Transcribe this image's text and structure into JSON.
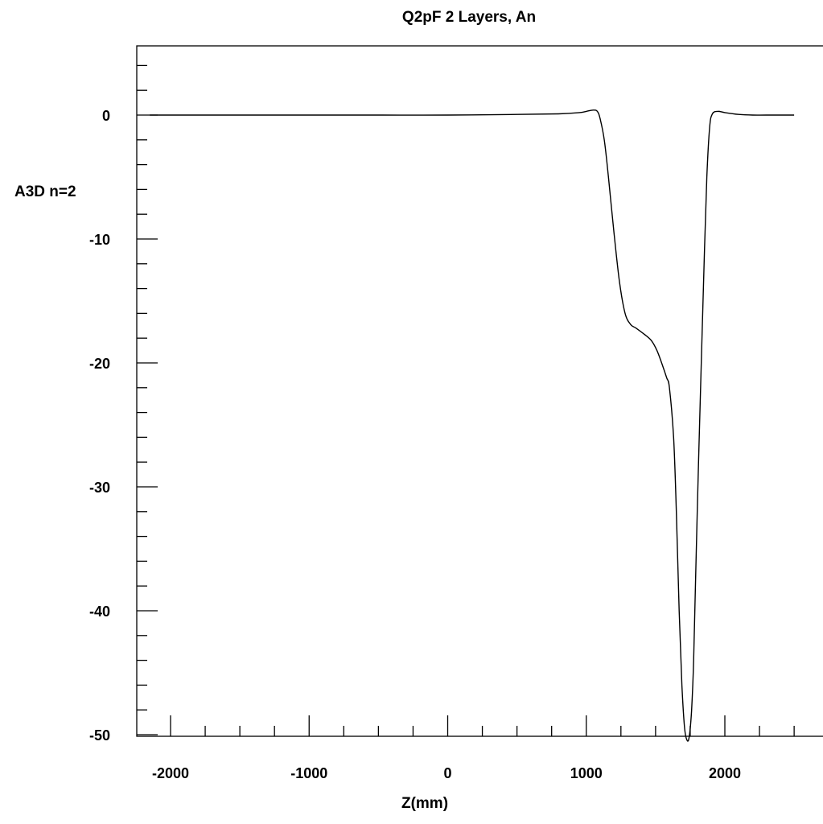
{
  "chart_data": {
    "type": "line",
    "title": "Q2pF 2 Layers, An",
    "xlabel": "Z(mm)",
    "ylabel": "A3D n=2",
    "xlim": [
      -2200,
      2600
    ],
    "ylim": [
      -50,
      5.5
    ],
    "x_ticks": [
      -2000,
      -1000,
      0,
      1000,
      2000
    ],
    "y_ticks": [
      0,
      -10,
      -20,
      -30,
      -40,
      -50
    ],
    "grid": false,
    "series": [
      {
        "x": [
          -2150,
          -1500,
          -1000,
          -500,
          0,
          500,
          800,
          950,
          1000,
          1050,
          1080,
          1100,
          1130,
          1160,
          1200,
          1240,
          1280,
          1320,
          1360,
          1420,
          1470,
          1510,
          1550,
          1580,
          1600,
          1630,
          1650,
          1670,
          1690,
          1710,
          1730,
          1745,
          1760,
          1775,
          1790,
          1810,
          1830,
          1850,
          1870,
          1890,
          1910,
          1950,
          2000,
          2100,
          2200,
          2300,
          2500
        ],
        "y": [
          0,
          0,
          0,
          0,
          0,
          0.05,
          0.1,
          0.2,
          0.3,
          0.4,
          0.3,
          -0.3,
          -2,
          -5,
          -9.5,
          -13.5,
          -16,
          -16.9,
          -17.2,
          -17.7,
          -18.2,
          -19,
          -20.2,
          -21.2,
          -22,
          -26,
          -32,
          -40,
          -46,
          -49.5,
          -50.5,
          -50,
          -48,
          -44,
          -37,
          -28,
          -20,
          -12,
          -5,
          -1,
          0.1,
          0.3,
          0.2,
          0.05,
          0,
          0,
          0
        ]
      }
    ]
  }
}
